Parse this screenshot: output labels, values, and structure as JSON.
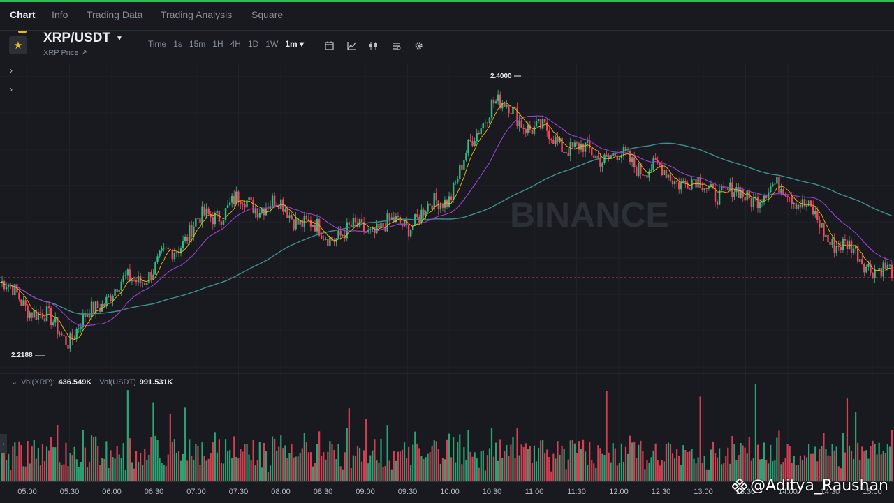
{
  "tabs": [
    {
      "label": "Chart",
      "active": true
    },
    {
      "label": "Info"
    },
    {
      "label": "Trading Data"
    },
    {
      "label": "Trading Analysis"
    },
    {
      "label": "Square"
    }
  ],
  "header": {
    "pair": "XRP/USDT",
    "subtitle": "XRP Price ↗",
    "intervals": [
      "Time",
      "1s",
      "15m",
      "1H",
      "4H",
      "1D",
      "1W",
      "1m ▾"
    ],
    "active_interval": "1m ▾",
    "tools": [
      "calendar-icon",
      "drawing-icon",
      "candle-type-icon",
      "indicator-icon",
      "settings-icon"
    ]
  },
  "watermark": "BINANCE",
  "markers": {
    "high": "2.4000",
    "low": "2.2188"
  },
  "volume_legend": {
    "xrp_label": "Vol(XRP):",
    "xrp_value": "436.549K",
    "usdt_label": "Vol(USDT)",
    "usdt_value": "991.531K"
  },
  "xaxis": [
    "05:00",
    "05:30",
    "06:00",
    "06:30",
    "07:00",
    "07:30",
    "08:00",
    "08:30",
    "09:00",
    "09:30",
    "10:00",
    "10:30",
    "11:00",
    "11:30",
    "12:00",
    "12:30",
    "13:00",
    "13:30",
    "14:00",
    "14:30",
    "15:00"
  ],
  "handle": "@Aditya_Raushan",
  "colors": {
    "up": "#2ebd85",
    "down": "#f6465d",
    "ma_fast": "#f0b90b",
    "ma_mid": "#a03fd1",
    "ma_slow": "#3f8f8f",
    "ref_line": "#c9434f"
  },
  "chart_data": {
    "type": "candlestick",
    "interval": "1m",
    "x": [
      "05:00",
      "05:30",
      "06:00",
      "06:30",
      "07:00",
      "07:30",
      "08:00",
      "08:30",
      "09:00",
      "09:30",
      "10:00",
      "10:30",
      "11:00",
      "11:30",
      "12:00",
      "12:30",
      "13:00",
      "13:30",
      "14:00",
      "14:30",
      "15:00"
    ],
    "price": [
      2.245,
      2.222,
      2.255,
      2.268,
      2.3,
      2.315,
      2.312,
      2.292,
      2.296,
      2.3,
      2.32,
      2.385,
      2.365,
      2.35,
      2.345,
      2.335,
      2.325,
      2.318,
      2.325,
      2.29,
      2.272
    ],
    "high": 2.4,
    "low": 2.2188
  }
}
